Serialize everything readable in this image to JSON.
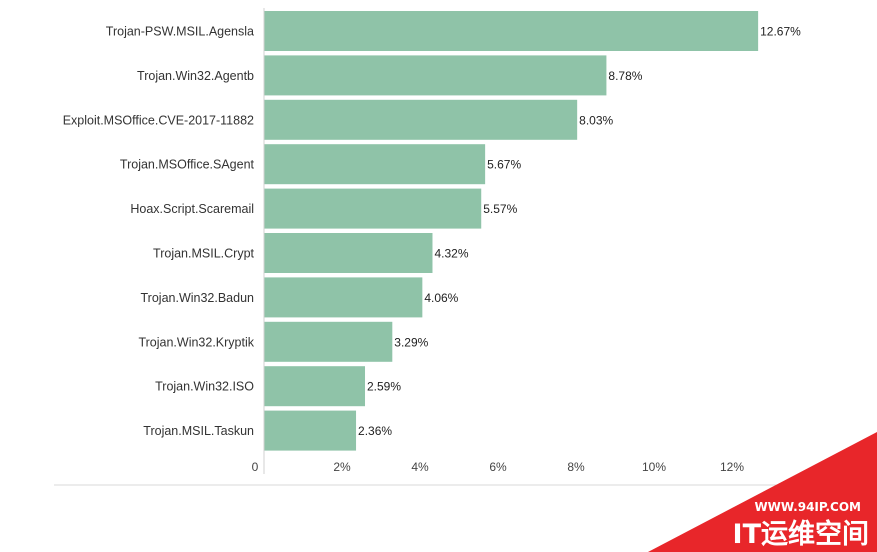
{
  "chart_data": {
    "type": "bar",
    "orientation": "horizontal",
    "categories": [
      "Trojan-PSW.MSIL.Agensla",
      "Trojan.Win32.Agentb",
      "Exploit.MSOffice.CVE-2017-11882",
      "Trojan.MSOffice.SAgent",
      "Hoax.Script.Scaremail",
      "Trojan.MSIL.Crypt",
      "Trojan.Win32.Badun",
      "Trojan.Win32.Kryptik",
      "Trojan.Win32.ISO",
      "Trojan.MSIL.Taskun"
    ],
    "values": [
      12.67,
      8.78,
      8.03,
      5.67,
      5.57,
      4.32,
      4.06,
      3.29,
      2.59,
      2.36
    ],
    "value_labels": [
      "12.67%",
      "8.78%",
      "8.03%",
      "5.67%",
      "5.57%",
      "4.32%",
      "4.06%",
      "3.29%",
      "2.59%",
      "2.36%"
    ],
    "x_ticks": [
      0,
      2,
      4,
      6,
      8,
      10,
      12
    ],
    "x_tick_labels": [
      "0",
      "2%",
      "4%",
      "6%",
      "8%",
      "10%",
      "12%"
    ],
    "xlim": [
      0,
      14
    ],
    "title": "",
    "xlabel": "",
    "ylabel": "",
    "grid": false,
    "bar_color": "#8fc3a8"
  },
  "watermark": {
    "url": "WWW.94IP.COM",
    "brand": "IT运维空间",
    "color": "#e8262a"
  }
}
